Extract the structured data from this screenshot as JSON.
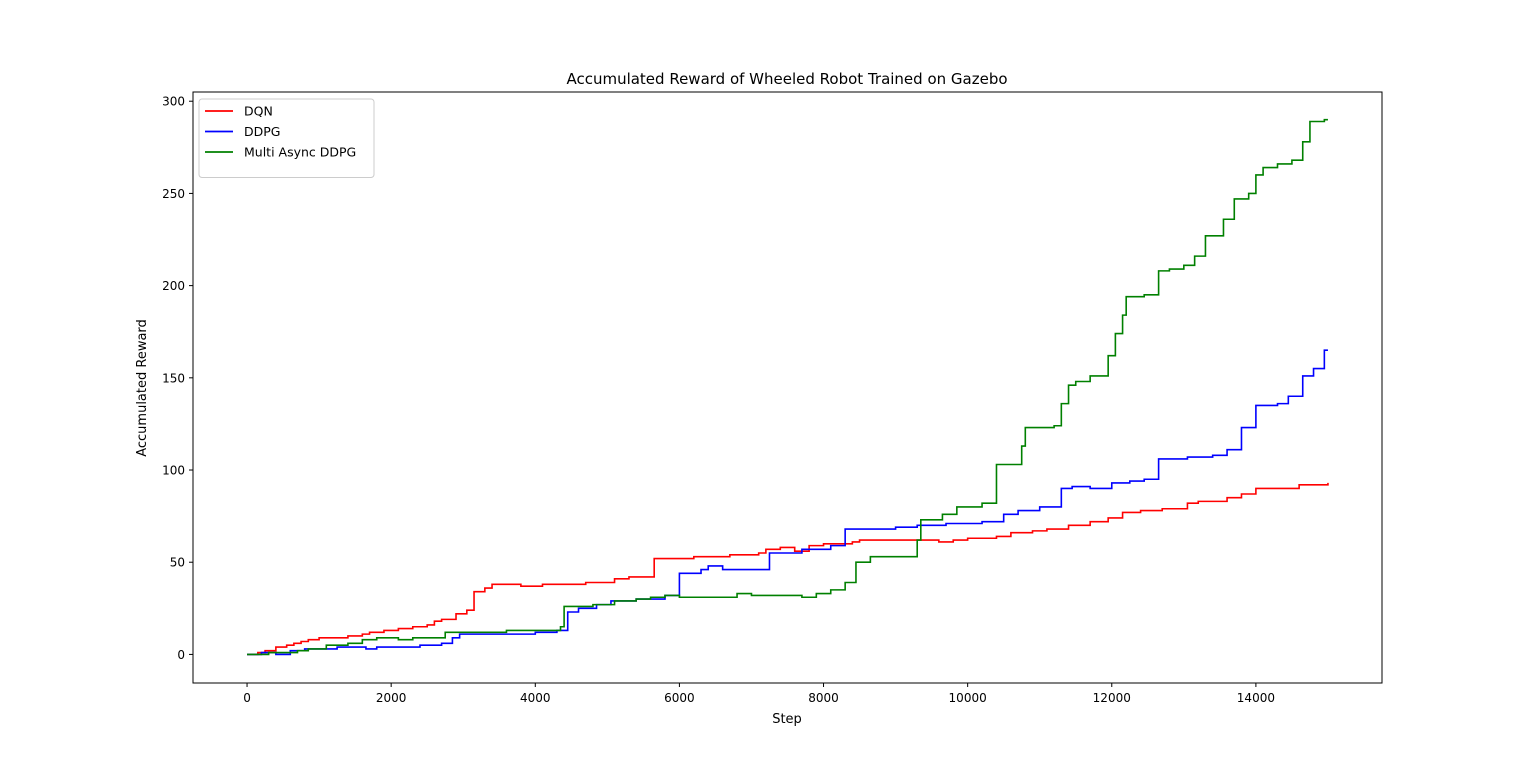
{
  "chart_data": {
    "type": "line",
    "title": "Accumulated Reward of Wheeled Robot Trained on Gazebo",
    "xlabel": "Step",
    "ylabel": "Accumulated Reward",
    "xlim": [
      -750,
      15750
    ],
    "ylim": [
      -15.5,
      305
    ],
    "xticks": [
      0,
      2000,
      4000,
      6000,
      8000,
      10000,
      12000,
      14000
    ],
    "yticks": [
      0,
      50,
      100,
      150,
      200,
      250,
      300
    ],
    "grid": false,
    "legend_position": "top-left",
    "step_style": "post",
    "series": [
      {
        "name": "DQN",
        "color": "#ff0000",
        "points": [
          [
            0,
            0
          ],
          [
            150,
            1
          ],
          [
            250,
            2
          ],
          [
            400,
            4
          ],
          [
            550,
            5
          ],
          [
            650,
            6
          ],
          [
            750,
            7
          ],
          [
            850,
            8
          ],
          [
            1000,
            9
          ],
          [
            1200,
            9
          ],
          [
            1400,
            10
          ],
          [
            1600,
            11
          ],
          [
            1700,
            12
          ],
          [
            1900,
            13
          ],
          [
            2100,
            14
          ],
          [
            2300,
            15
          ],
          [
            2500,
            16
          ],
          [
            2600,
            18
          ],
          [
            2700,
            19
          ],
          [
            2900,
            22
          ],
          [
            3050,
            24
          ],
          [
            3150,
            34
          ],
          [
            3300,
            36
          ],
          [
            3400,
            38
          ],
          [
            3600,
            38
          ],
          [
            3800,
            37
          ],
          [
            4100,
            38
          ],
          [
            4700,
            39
          ],
          [
            5100,
            41
          ],
          [
            5300,
            42
          ],
          [
            5650,
            52
          ],
          [
            6000,
            52
          ],
          [
            6200,
            53
          ],
          [
            6600,
            53
          ],
          [
            6700,
            54
          ],
          [
            7100,
            55
          ],
          [
            7200,
            57
          ],
          [
            7400,
            58
          ],
          [
            7600,
            56
          ],
          [
            7800,
            59
          ],
          [
            8000,
            60
          ],
          [
            8400,
            61
          ],
          [
            8500,
            62
          ],
          [
            9600,
            61
          ],
          [
            9800,
            62
          ],
          [
            10000,
            63
          ],
          [
            10400,
            64
          ],
          [
            10600,
            66
          ],
          [
            10900,
            67
          ],
          [
            11100,
            68
          ],
          [
            11400,
            70
          ],
          [
            11700,
            72
          ],
          [
            11950,
            74
          ],
          [
            12150,
            77
          ],
          [
            12400,
            78
          ],
          [
            12700,
            79
          ],
          [
            13050,
            82
          ],
          [
            13200,
            83
          ],
          [
            13600,
            85
          ],
          [
            13800,
            87
          ],
          [
            14000,
            90
          ],
          [
            14300,
            90
          ],
          [
            14600,
            92
          ],
          [
            14800,
            92
          ],
          [
            15000,
            93
          ]
        ]
      },
      {
        "name": "DDPG",
        "color": "#0000ff",
        "points": [
          [
            0,
            0
          ],
          [
            200,
            1
          ],
          [
            400,
            0
          ],
          [
            600,
            2
          ],
          [
            800,
            3
          ],
          [
            1000,
            3
          ],
          [
            1250,
            4
          ],
          [
            1650,
            3
          ],
          [
            1800,
            4
          ],
          [
            2200,
            4
          ],
          [
            2400,
            5
          ],
          [
            2700,
            6
          ],
          [
            2850,
            9
          ],
          [
            2950,
            11
          ],
          [
            3300,
            11
          ],
          [
            4000,
            12
          ],
          [
            4300,
            13
          ],
          [
            4450,
            23
          ],
          [
            4600,
            25
          ],
          [
            4850,
            27
          ],
          [
            5050,
            29
          ],
          [
            5400,
            30
          ],
          [
            5800,
            32
          ],
          [
            6000,
            44
          ],
          [
            6300,
            46
          ],
          [
            6400,
            48
          ],
          [
            6600,
            46
          ],
          [
            6850,
            46
          ],
          [
            7250,
            55
          ],
          [
            7700,
            57
          ],
          [
            8100,
            59
          ],
          [
            8300,
            68
          ],
          [
            8700,
            68
          ],
          [
            9000,
            69
          ],
          [
            9300,
            70
          ],
          [
            9700,
            71
          ],
          [
            10200,
            72
          ],
          [
            10500,
            76
          ],
          [
            10700,
            78
          ],
          [
            11000,
            80
          ],
          [
            11300,
            90
          ],
          [
            11450,
            91
          ],
          [
            11700,
            90
          ],
          [
            12000,
            93
          ],
          [
            12250,
            94
          ],
          [
            12450,
            95
          ],
          [
            12650,
            106
          ],
          [
            13050,
            107
          ],
          [
            13400,
            108
          ],
          [
            13600,
            111
          ],
          [
            13800,
            123
          ],
          [
            14000,
            135
          ],
          [
            14300,
            136
          ],
          [
            14450,
            140
          ],
          [
            14650,
            151
          ],
          [
            14800,
            155
          ],
          [
            14950,
            165
          ],
          [
            15000,
            165
          ]
        ]
      },
      {
        "name": "Multi Async DDPG",
        "color": "#008000",
        "points": [
          [
            0,
            0
          ],
          [
            200,
            0
          ],
          [
            300,
            1
          ],
          [
            700,
            2
          ],
          [
            850,
            3
          ],
          [
            1100,
            5
          ],
          [
            1400,
            6
          ],
          [
            1600,
            8
          ],
          [
            1800,
            9
          ],
          [
            2100,
            8
          ],
          [
            2300,
            9
          ],
          [
            2700,
            9
          ],
          [
            2750,
            12
          ],
          [
            3300,
            12
          ],
          [
            3600,
            13
          ],
          [
            4200,
            13
          ],
          [
            4350,
            15
          ],
          [
            4400,
            26
          ],
          [
            4800,
            27
          ],
          [
            5100,
            29
          ],
          [
            5400,
            30
          ],
          [
            5600,
            31
          ],
          [
            5800,
            32
          ],
          [
            6000,
            31
          ],
          [
            6500,
            31
          ],
          [
            6800,
            33
          ],
          [
            7000,
            32
          ],
          [
            7300,
            32
          ],
          [
            7700,
            31
          ],
          [
            7900,
            33
          ],
          [
            8100,
            35
          ],
          [
            8300,
            39
          ],
          [
            8450,
            50
          ],
          [
            8650,
            53
          ],
          [
            8900,
            53
          ],
          [
            9300,
            62
          ],
          [
            9350,
            73
          ],
          [
            9650,
            76
          ],
          [
            9850,
            80
          ],
          [
            10200,
            82
          ],
          [
            10400,
            103
          ],
          [
            10750,
            113
          ],
          [
            10800,
            123
          ],
          [
            11200,
            124
          ],
          [
            11300,
            136
          ],
          [
            11400,
            146
          ],
          [
            11500,
            148
          ],
          [
            11700,
            151
          ],
          [
            11950,
            162
          ],
          [
            12050,
            174
          ],
          [
            12150,
            184
          ],
          [
            12200,
            194
          ],
          [
            12450,
            195
          ],
          [
            12650,
            208
          ],
          [
            12800,
            209
          ],
          [
            13000,
            211
          ],
          [
            13150,
            216
          ],
          [
            13300,
            227
          ],
          [
            13550,
            236
          ],
          [
            13700,
            247
          ],
          [
            13900,
            250
          ],
          [
            14000,
            260
          ],
          [
            14100,
            264
          ],
          [
            14300,
            266
          ],
          [
            14500,
            268
          ],
          [
            14650,
            278
          ],
          [
            14750,
            289
          ],
          [
            14950,
            290
          ],
          [
            15000,
            290
          ]
        ]
      }
    ]
  }
}
